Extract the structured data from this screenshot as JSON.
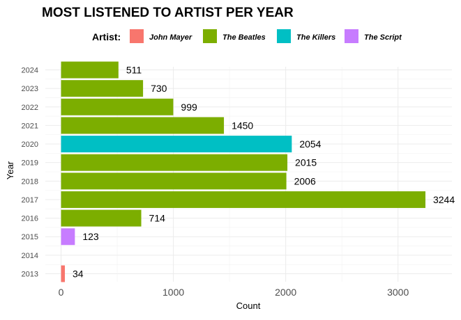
{
  "chart_data": {
    "type": "bar",
    "orientation": "horizontal",
    "title": "MOST LISTENED TO ARTIST PER YEAR",
    "xlabel": "Count",
    "ylabel": "Year",
    "xlim": [
      -140,
      3480
    ],
    "x_ticks": [
      0,
      1000,
      2000,
      3000
    ],
    "x_tick_labels": [
      "0",
      "1000",
      "2000",
      "3000"
    ],
    "grid": true,
    "legend": {
      "title": "Artist:",
      "position": "top",
      "entries": [
        {
          "name": "John Mayer",
          "color": "#F8766D"
        },
        {
          "name": "The Beatles",
          "color": "#7CAE00"
        },
        {
          "name": "The Killers",
          "color": "#00BFC4"
        },
        {
          "name": "The Script",
          "color": "#C77CFF"
        }
      ]
    },
    "categories": [
      "2013",
      "2014",
      "2015",
      "2016",
      "2017",
      "2018",
      "2019",
      "2020",
      "2021",
      "2022",
      "2023",
      "2024"
    ],
    "bars": [
      {
        "year": "2013",
        "value": 34,
        "label": "34",
        "artist": "John Mayer"
      },
      {
        "year": "2015",
        "value": 123,
        "label": "123",
        "artist": "The Script"
      },
      {
        "year": "2016",
        "value": 714,
        "label": "714",
        "artist": "The Beatles"
      },
      {
        "year": "2017",
        "value": 3244,
        "label": "3244",
        "artist": "The Beatles"
      },
      {
        "year": "2018",
        "value": 2006,
        "label": "2006",
        "artist": "The Beatles"
      },
      {
        "year": "2019",
        "value": 2015,
        "label": "2015",
        "artist": "The Beatles"
      },
      {
        "year": "2020",
        "value": 2054,
        "label": "2054",
        "artist": "The Killers"
      },
      {
        "year": "2021",
        "value": 1450,
        "label": "1450",
        "artist": "The Beatles"
      },
      {
        "year": "2022",
        "value": 999,
        "label": "999",
        "artist": "The Beatles"
      },
      {
        "year": "2023",
        "value": 730,
        "label": "730",
        "artist": "The Beatles"
      },
      {
        "year": "2024",
        "value": 511,
        "label": "511",
        "artist": "The Beatles"
      }
    ]
  }
}
